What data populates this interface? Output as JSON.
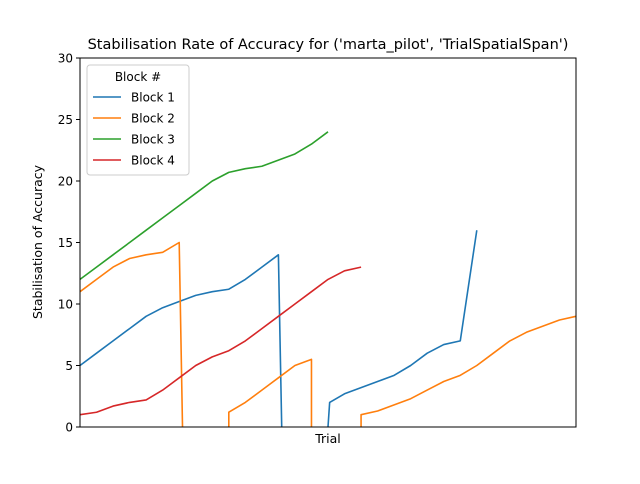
{
  "chart_data": {
    "type": "line",
    "title": "Stabilisation Rate of Accuracy for ('marta_pilot', 'TrialSpatialSpan')",
    "xlabel": "Trial",
    "ylabel": "Stabilisation of Accuracy",
    "xlim": [
      0,
      30
    ],
    "ylim": [
      0,
      30
    ],
    "yticks": [
      0,
      5,
      10,
      15,
      20,
      25,
      30
    ],
    "xticks_visible": false,
    "grid": false,
    "legend": {
      "title": "Block #",
      "placement": "top-left"
    },
    "series": [
      {
        "name": "Block 1",
        "color": "#1f77b4",
        "x": [
          0,
          1,
          2,
          3,
          4,
          5,
          6,
          7,
          8,
          9,
          10,
          11,
          12,
          12.2,
          null,
          15,
          15.1,
          16,
          17,
          18,
          19,
          20,
          21,
          22,
          23,
          24
        ],
        "y": [
          5,
          6,
          7,
          8,
          9,
          9.7,
          10.2,
          10.7,
          11,
          11.2,
          12,
          13,
          14,
          0,
          null,
          0,
          2,
          2.7,
          3.2,
          3.7,
          4.2,
          5,
          6,
          6.7,
          7,
          16
        ]
      },
      {
        "name": "Block 2",
        "color": "#ff7f0e",
        "x": [
          0,
          1,
          2,
          3,
          4,
          5,
          6,
          6.2,
          null,
          9,
          9,
          10,
          11,
          12,
          13,
          14,
          14,
          null,
          17,
          17,
          18,
          19,
          20,
          21,
          22,
          23,
          24,
          25,
          26,
          27,
          28,
          29,
          30
        ],
        "y": [
          11,
          12,
          13,
          13.7,
          14,
          14.2,
          15,
          0,
          null,
          0,
          1.2,
          2,
          3,
          4,
          5,
          5.5,
          0,
          null,
          0,
          1,
          1.3,
          1.8,
          2.3,
          3,
          3.7,
          4.2,
          5,
          6,
          7,
          7.7,
          8.2,
          8.7,
          9
        ]
      },
      {
        "name": "Block 3",
        "color": "#2ca02c",
        "x": [
          0,
          1,
          2,
          3,
          4,
          5,
          6,
          7,
          8,
          9,
          10,
          11,
          12,
          13,
          14,
          15
        ],
        "y": [
          12,
          13,
          14,
          15,
          16,
          17,
          18,
          19,
          20,
          20.7,
          21,
          21.2,
          21.7,
          22.2,
          23,
          24
        ]
      },
      {
        "name": "Block 4",
        "color": "#d62728",
        "x": [
          0,
          1,
          2,
          3,
          4,
          5,
          6,
          7,
          8,
          9,
          10,
          11,
          12,
          13,
          14,
          15,
          16,
          17
        ],
        "y": [
          1,
          1.2,
          1.7,
          2,
          2.2,
          3,
          4,
          5,
          5.7,
          6.2,
          7,
          8,
          9,
          10,
          11,
          12,
          12.7,
          13
        ]
      }
    ]
  }
}
